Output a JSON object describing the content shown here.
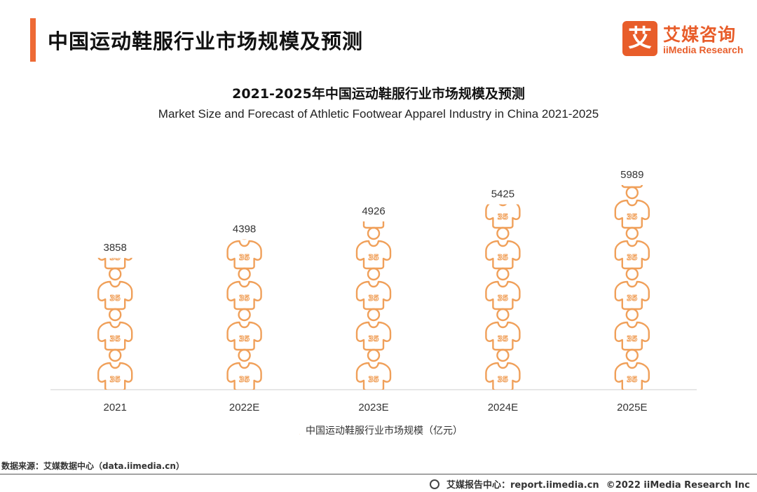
{
  "header": {
    "title": "中国运动鞋服行业市场规模及预测",
    "logo_mark": "艾",
    "logo_cn": "艾媒咨询",
    "logo_en": "iiMedia Research"
  },
  "colors": {
    "accent": "#ee6a35",
    "icon": "#f0a05a"
  },
  "chart_data": {
    "type": "bar",
    "title": "2021-2025年中国运动鞋服行业市场规模及预测",
    "subtitle": "Market Size and Forecast of Athletic Footwear Apparel Industry in China 2021-2025",
    "categories": [
      "2021",
      "2022E",
      "2023E",
      "2024E",
      "2025E"
    ],
    "series": [
      {
        "name": "中国运动鞋服行业市场规模（亿元）",
        "values": [
          3858,
          4398,
          4926,
          5425,
          5989
        ]
      }
    ],
    "ylim": [
      0,
      5989
    ],
    "mark": "jersey-icon stack",
    "grid": false,
    "legend": "bottom"
  },
  "footer": {
    "source": "数据来源：艾媒数据中心（data.iimedia.cn）",
    "report": "艾媒报告中心：report.iimedia.cn",
    "copyright": "©2022  iiMedia Research  Inc"
  }
}
